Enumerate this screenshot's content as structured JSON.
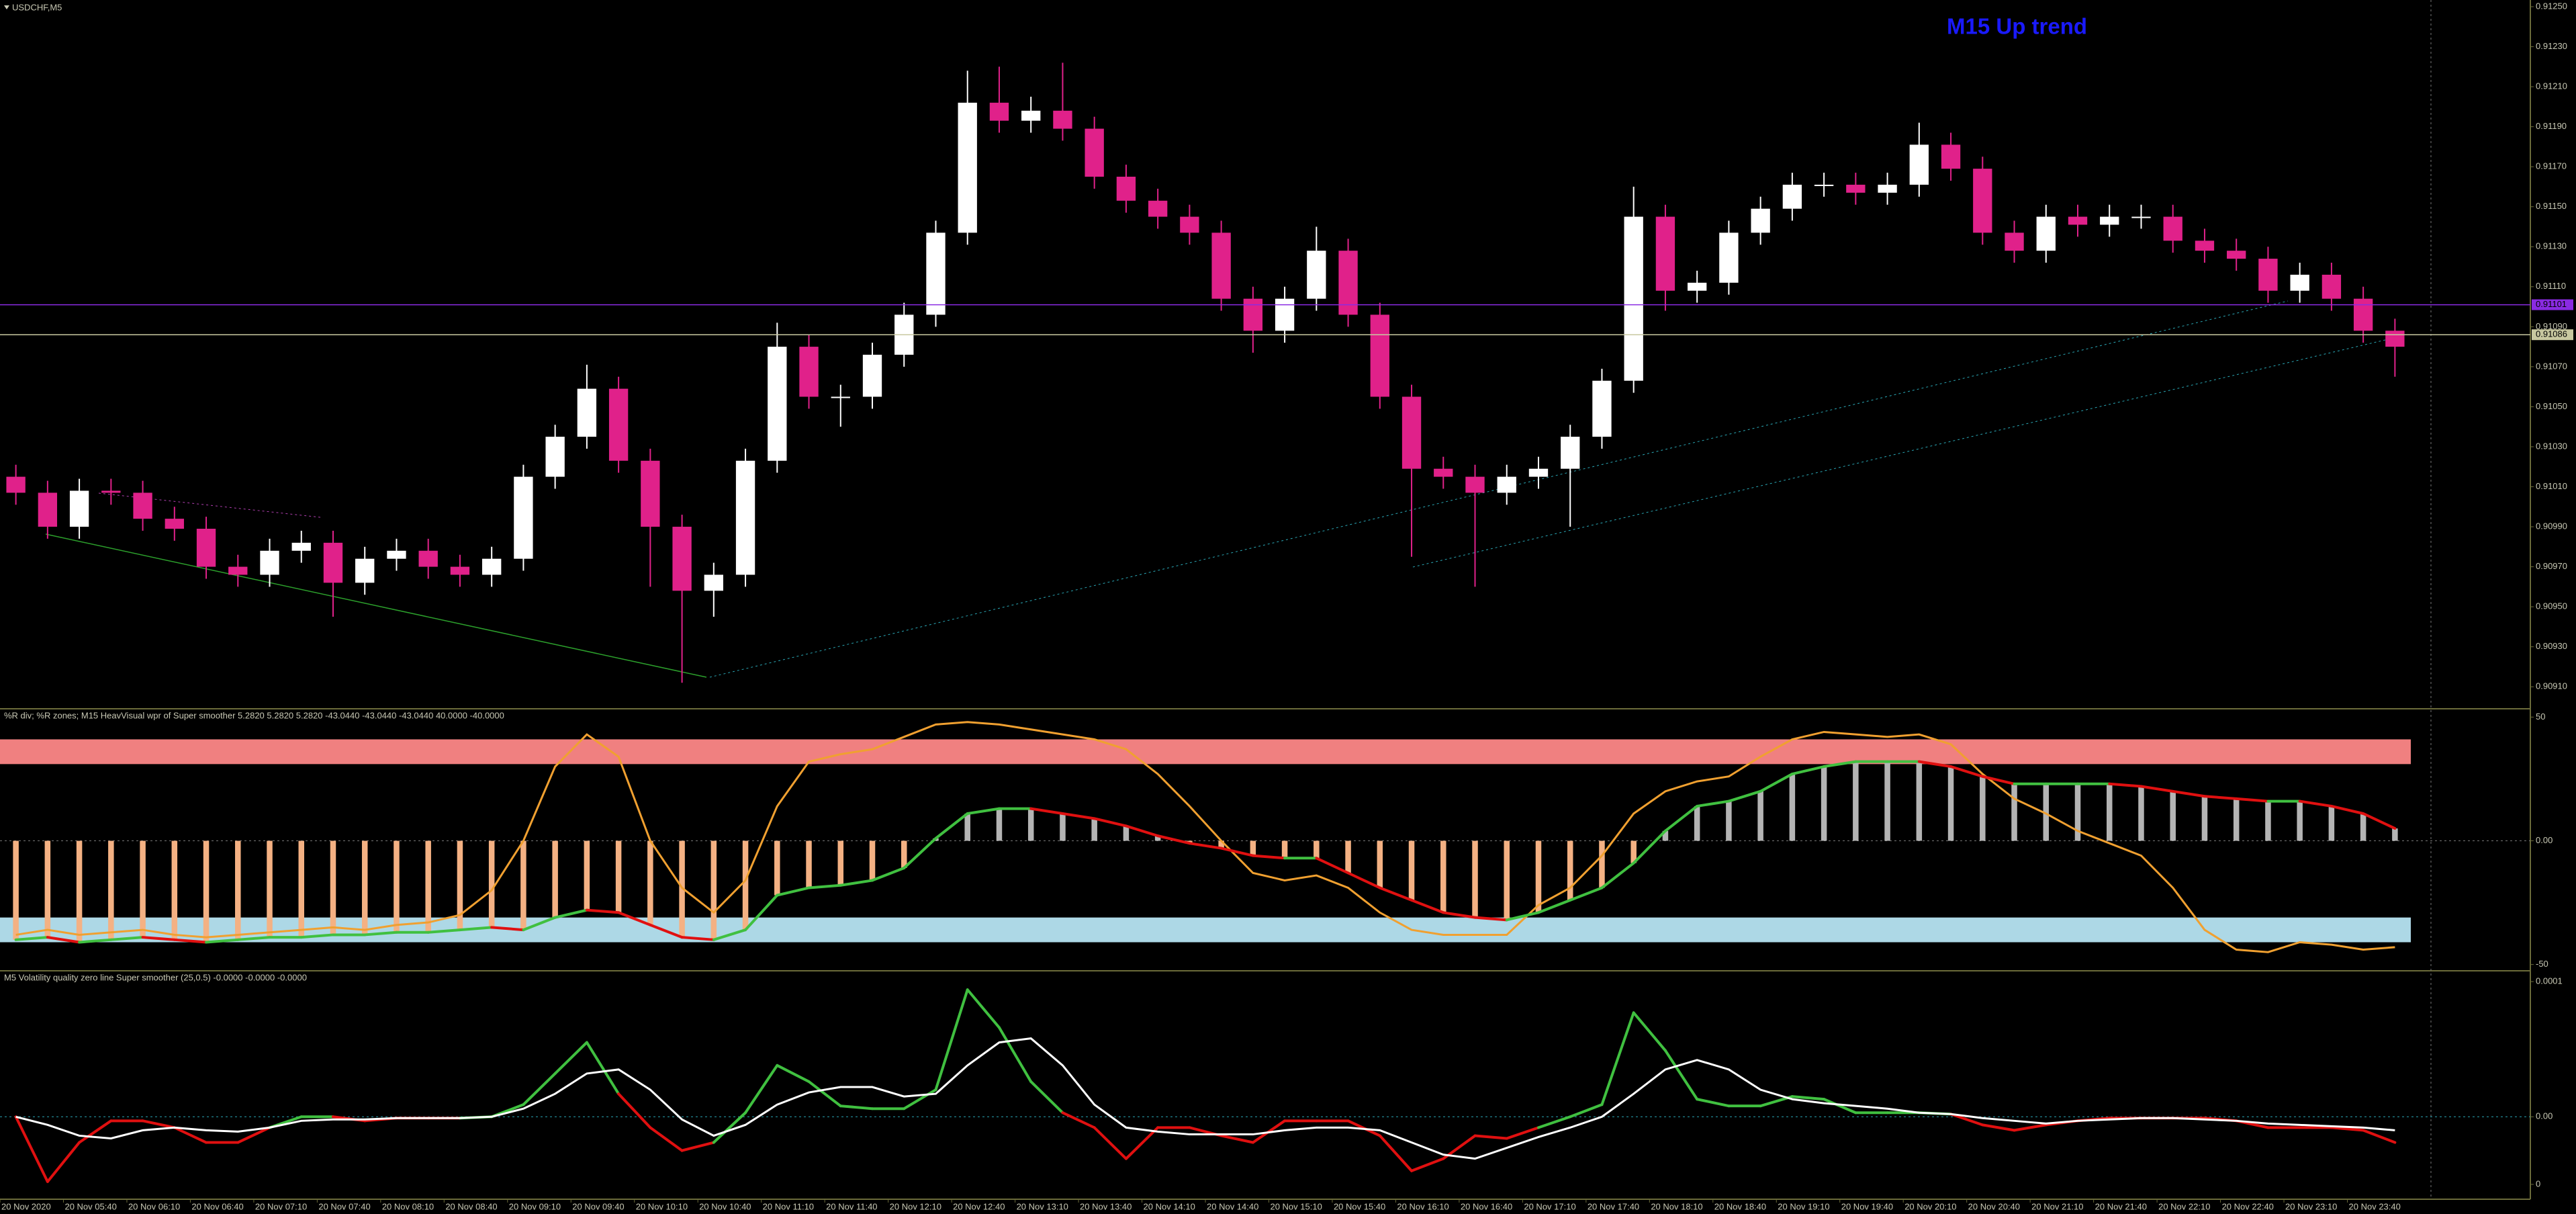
{
  "chart_data": [
    {
      "type": "candlestick",
      "title": "USDCHF,M5",
      "annotation": "M15 Up trend",
      "categories": [
        "20 Nov 2020",
        null,
        "20 Nov 05:40",
        null,
        "20 Nov 06:10",
        null,
        "20 Nov 06:40",
        null,
        "20 Nov 07:10",
        null,
        "20 Nov 07:40",
        null,
        "20 Nov 08:10",
        null,
        "20 Nov 08:40",
        null,
        "20 Nov 09:10",
        null,
        "20 Nov 09:40",
        null,
        "20 Nov 10:10",
        null,
        "20 Nov 10:40",
        null,
        "20 Nov 11:10",
        null,
        "20 Nov 11:40",
        null,
        "20 Nov 12:10",
        null,
        "20 Nov 12:40",
        null,
        "20 Nov 13:10",
        null,
        "20 Nov 13:40",
        null,
        "20 Nov 14:10",
        null,
        "20 Nov 14:40",
        null,
        "20 Nov 15:10",
        null,
        "20 Nov 15:40",
        null,
        "20 Nov 16:10",
        null,
        "20 Nov 16:40",
        null,
        "20 Nov 17:10",
        null,
        "20 Nov 17:40",
        null,
        "20 Nov 18:10",
        null,
        "20 Nov 18:40",
        null,
        "20 Nov 19:10",
        null,
        "20 Nov 19:40",
        null,
        "20 Nov 20:10",
        null,
        "20 Nov 20:40",
        null,
        "20 Nov 21:10",
        null,
        "20 Nov 21:40",
        null,
        "20 Nov 22:10",
        null,
        "20 Nov 22:40",
        null,
        "20 Nov 23:10",
        null,
        "20 Nov 23:40",
        null
      ],
      "open": [
        0.91015,
        0.91007,
        0.9099,
        0.91008,
        0.91007,
        0.90994,
        0.90989,
        0.9097,
        0.90966,
        0.90978,
        0.90982,
        0.90962,
        0.90974,
        0.90978,
        0.9097,
        0.90966,
        0.90974,
        0.91015,
        0.91035,
        0.91059,
        0.91023,
        0.9099,
        0.90958,
        0.90966,
        0.91023,
        0.9108,
        0.91055,
        0.91055,
        0.91076,
        0.91096,
        0.91137,
        0.91202,
        0.91193,
        0.91198,
        0.91189,
        0.91165,
        0.91153,
        0.91145,
        0.91137,
        0.91104,
        0.91088,
        0.91104,
        0.91128,
        0.91096,
        0.91055,
        0.91019,
        0.91015,
        0.91007,
        0.91015,
        0.91019,
        0.91035,
        0.91063,
        0.91145,
        0.91108,
        0.91112,
        0.91137,
        0.91149,
        0.91161,
        0.91161,
        0.91157,
        0.91161,
        0.91181,
        0.91169,
        0.91137,
        0.91128,
        0.91145,
        0.91141,
        0.91145,
        0.91145,
        0.91133,
        0.91128,
        0.91124,
        0.91108,
        0.91116,
        0.91104,
        0.91088
      ],
      "high": [
        0.91021,
        0.91013,
        0.91014,
        0.91014,
        0.91013,
        0.91,
        0.90995,
        0.90976,
        0.90984,
        0.90988,
        0.90988,
        0.9098,
        0.90984,
        0.90984,
        0.90976,
        0.9098,
        0.91021,
        0.91041,
        0.91071,
        0.91065,
        0.91029,
        0.90996,
        0.90972,
        0.91029,
        0.91092,
        0.91086,
        0.91061,
        0.91082,
        0.91102,
        0.91143,
        0.91218,
        0.9122,
        0.91205,
        0.91222,
        0.91195,
        0.91171,
        0.91159,
        0.91151,
        0.91143,
        0.9111,
        0.9111,
        0.9114,
        0.91134,
        0.91102,
        0.91061,
        0.91025,
        0.91021,
        0.91021,
        0.91025,
        0.91041,
        0.91069,
        0.9116,
        0.91151,
        0.91118,
        0.91143,
        0.91155,
        0.91167,
        0.91167,
        0.91167,
        0.91167,
        0.91192,
        0.91187,
        0.91175,
        0.91143,
        0.91151,
        0.91151,
        0.91151,
        0.91151,
        0.91151,
        0.91139,
        0.91134,
        0.9113,
        0.91122,
        0.91122,
        0.9111,
        0.91094
      ],
      "low": [
        0.91001,
        0.90984,
        0.90984,
        0.91001,
        0.90988,
        0.90983,
        0.90964,
        0.9096,
        0.9096,
        0.90972,
        0.90945,
        0.90956,
        0.90968,
        0.90964,
        0.9096,
        0.9096,
        0.90968,
        0.91009,
        0.91029,
        0.91017,
        0.9096,
        0.90912,
        0.90945,
        0.9096,
        0.91017,
        0.91049,
        0.9104,
        0.91049,
        0.9107,
        0.9109,
        0.91131,
        0.91187,
        0.91187,
        0.91183,
        0.91159,
        0.91147,
        0.91139,
        0.91131,
        0.91098,
        0.91077,
        0.91082,
        0.91098,
        0.9109,
        0.91049,
        0.90975,
        0.91009,
        0.9096,
        0.91001,
        0.91009,
        0.9099,
        0.91029,
        0.91057,
        0.91098,
        0.91102,
        0.91106,
        0.91131,
        0.91143,
        0.91155,
        0.91151,
        0.91151,
        0.91155,
        0.91163,
        0.91131,
        0.91122,
        0.91122,
        0.91135,
        0.91135,
        0.91139,
        0.91127,
        0.91122,
        0.91118,
        0.91102,
        0.91102,
        0.91098,
        0.91082,
        0.91065
      ],
      "close": [
        0.91007,
        0.9099,
        0.91008,
        0.91007,
        0.90994,
        0.90989,
        0.9097,
        0.90966,
        0.90978,
        0.90982,
        0.90962,
        0.90974,
        0.90978,
        0.9097,
        0.90966,
        0.90974,
        0.91015,
        0.91035,
        0.91059,
        0.91023,
        0.9099,
        0.90958,
        0.90966,
        0.91023,
        0.9108,
        0.91055,
        0.91055,
        0.91076,
        0.91096,
        0.91137,
        0.91202,
        0.91193,
        0.91198,
        0.91189,
        0.91165,
        0.91153,
        0.91145,
        0.91137,
        0.91104,
        0.91088,
        0.91104,
        0.91128,
        0.91096,
        0.91055,
        0.91019,
        0.91015,
        0.91007,
        0.91015,
        0.91019,
        0.91035,
        0.91063,
        0.91145,
        0.91108,
        0.91112,
        0.91137,
        0.91149,
        0.91161,
        0.91161,
        0.91157,
        0.91161,
        0.91181,
        0.91169,
        0.91137,
        0.91128,
        0.91145,
        0.91141,
        0.91145,
        0.91145,
        0.91133,
        0.91128,
        0.91124,
        0.91108,
        0.91116,
        0.91104,
        0.91088,
        0.9108
      ],
      "up_color": "#ffffff",
      "down_color": "#e0218a",
      "ylim": [
        0.909,
        0.91252
      ],
      "yticks": [
        {
          "value": 0.9091,
          "label": "0.90910"
        },
        {
          "value": 0.9093,
          "label": "0.90930"
        },
        {
          "value": 0.9095,
          "label": "0.90950"
        },
        {
          "value": 0.9097,
          "label": "0.90970"
        },
        {
          "value": 0.9099,
          "label": "0.90990"
        },
        {
          "value": 0.9101,
          "label": "0.91010"
        },
        {
          "value": 0.9103,
          "label": "0.91030"
        },
        {
          "value": 0.9105,
          "label": "0.91050"
        },
        {
          "value": 0.9107,
          "label": "0.91070"
        },
        {
          "value": 0.9109,
          "label": "0.91090"
        },
        {
          "value": 0.9111,
          "label": "0.91110"
        },
        {
          "value": 0.9113,
          "label": "0.91130"
        },
        {
          "value": 0.9115,
          "label": "0.91150"
        },
        {
          "value": 0.9117,
          "label": "0.91170"
        },
        {
          "value": 0.9119,
          "label": "0.91190"
        },
        {
          "value": 0.9121,
          "label": "0.91210"
        },
        {
          "value": 0.9123,
          "label": "0.91230"
        },
        {
          "value": 0.9125,
          "label": "0.91250"
        }
      ],
      "price_lines": [
        {
          "value": 0.91101,
          "color": "#8a2be2"
        },
        {
          "value": 0.91086,
          "color": "#c8c8a0"
        }
      ]
    },
    {
      "type": "line",
      "title": "%R div; %R zones; M15 HeavVisual wpr of Super smoother 5.2820 5.2820 5.2820 -43.0440 -43.0440 -43.0440 40.0000 -40.0000",
      "ylim": [
        -52,
        52
      ],
      "yticks": [
        50,
        {
          "value": 0,
          "label": "0.00"
        },
        -50
      ],
      "zones": [
        {
          "from": 31,
          "to": 41,
          "color": "#f08080"
        },
        {
          "from": -41,
          "to": -31,
          "color": "#add8e6"
        }
      ],
      "series": [
        {
          "color": "#f0a030",
          "values": [
            -38,
            -36,
            -38,
            -37,
            -36,
            -38,
            -39,
            -38,
            -37,
            -36,
            -35,
            -36,
            -34,
            -33,
            -30,
            -20,
            0,
            30,
            43,
            34,
            0,
            -19,
            -29,
            -16,
            14,
            32,
            35,
            37,
            42,
            47,
            48,
            47,
            45,
            43,
            41,
            37,
            27,
            14,
            0,
            -13,
            -16,
            -14,
            -19,
            -29,
            -36,
            -38,
            -38,
            -38,
            -26,
            -19,
            -6,
            11,
            20,
            24,
            26,
            34,
            41,
            44,
            43,
            42,
            43,
            39,
            27,
            17,
            11,
            4,
            -1,
            -6,
            -19,
            -36,
            -44,
            -45,
            -41,
            -42,
            -44,
            -43
          ]
        },
        {
          "up_color": "#40c040",
          "down_color": "#e01010",
          "histogram": true,
          "bar_color": "#b4b4b4",
          "bar_color_neg": "#f4b183",
          "values": [
            -40,
            -39,
            -41,
            -40,
            -39,
            -40,
            -41,
            -40,
            -39,
            -39,
            -38,
            -38,
            -37,
            -37,
            -36,
            -35,
            -36,
            -31,
            -28,
            -29,
            -34,
            -39,
            -40,
            -36,
            -22,
            -19,
            -18,
            -16,
            -11,
            1,
            11,
            13,
            13,
            11,
            9,
            6,
            2,
            -1,
            -3,
            -6,
            -7,
            -7,
            -13,
            -19,
            -24,
            -29,
            -31,
            -32,
            -29,
            -24,
            -19,
            -9,
            4,
            14,
            16,
            20,
            27,
            30,
            32,
            32,
            32,
            30,
            26,
            23,
            23,
            23,
            23,
            22,
            20,
            18,
            17,
            16,
            16,
            14,
            11,
            5
          ]
        }
      ]
    },
    {
      "type": "line",
      "title": "M5 Volatility quality zero line Super smoother (25,0.5) -0.0000 -0.0000 -0.0000",
      "ylim": [
        -6e-05,
        0.000106
      ],
      "yticks": [
        0.0001,
        {
          "value": 0,
          "label": "0.00"
        },
        {
          "value": -5e-05,
          "label": "0"
        }
      ],
      "series": [
        {
          "up_color": "#40c040",
          "down_color": "#e01010",
          "values": [
            0,
            -4.8e-05,
            -1.9e-05,
            -3e-06,
            -3e-06,
            -8e-06,
            -1.9e-05,
            -1.9e-05,
            -8e-06,
            0,
            0,
            -3e-06,
            -1e-06,
            -1e-06,
            -1e-06,
            0,
            9e-06,
            3.2e-05,
            5.5e-05,
            1.7e-05,
            -8e-06,
            -2.5e-05,
            -1.9e-05,
            3e-06,
            3.8e-05,
            2.6e-05,
            8e-06,
            6e-06,
            6e-06,
            2e-05,
            9.4e-05,
            6.6e-05,
            2.6e-05,
            3e-06,
            -8e-06,
            -3.1e-05,
            -8e-06,
            -8e-06,
            -1.4e-05,
            -1.9e-05,
            -3e-06,
            -3e-06,
            -3e-06,
            -1.4e-05,
            -4e-05,
            -3.1e-05,
            -1.4e-05,
            -1.6e-05,
            -8e-06,
            0,
            9e-06,
            7.7e-05,
            4.9e-05,
            1.3e-05,
            8e-06,
            8e-06,
            1.5e-05,
            1.3e-05,
            3e-06,
            3e-06,
            3e-06,
            2e-06,
            -6e-06,
            -1e-05,
            -6e-06,
            -3e-06,
            -1e-06,
            -1e-06,
            -1e-06,
            -1e-06,
            -3e-06,
            -8e-06,
            -8e-06,
            -8e-06,
            -1e-05,
            -1.9e-05
          ]
        },
        {
          "color": "#ffffff",
          "values": [
            0,
            -6e-06,
            -1.4e-05,
            -1.6e-05,
            -1e-05,
            -8e-06,
            -1e-05,
            -1.1e-05,
            -8e-06,
            -3e-06,
            -2e-06,
            -2e-06,
            -1e-06,
            -1e-06,
            -1e-06,
            0,
            6e-06,
            1.7e-05,
            3.2e-05,
            3.5e-05,
            2e-05,
            -2e-06,
            -1.4e-05,
            -6e-06,
            9e-06,
            1.8e-05,
            2.2e-05,
            2.2e-05,
            1.5e-05,
            1.7e-05,
            3.8e-05,
            5.5e-05,
            5.8e-05,
            3.8e-05,
            9e-06,
            -8e-06,
            -1.1e-05,
            -1.3e-05,
            -1.3e-05,
            -1.3e-05,
            -1e-05,
            -8e-06,
            -8e-06,
            -1e-05,
            -1.9e-05,
            -2.8e-05,
            -3.1e-05,
            -2.3e-05,
            -1.5e-05,
            -8e-06,
            0,
            1.7e-05,
            3.5e-05,
            4.2e-05,
            3.5e-05,
            2e-05,
            1.3e-05,
            1e-05,
            8e-06,
            6e-06,
            3e-06,
            2e-06,
            -1e-06,
            -3e-06,
            -5e-06,
            -3e-06,
            -2e-06,
            -1e-06,
            -1e-06,
            -2e-06,
            -3e-06,
            -5e-06,
            -6e-06,
            -7e-06,
            -8e-06,
            -1e-05
          ]
        }
      ]
    }
  ]
}
